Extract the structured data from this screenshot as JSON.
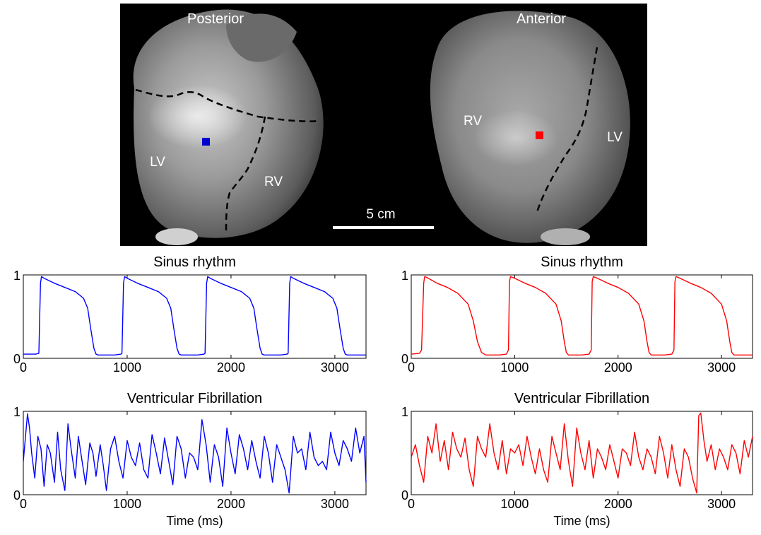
{
  "image_panel": {
    "labels": {
      "posterior": "Posterior",
      "anterior": "Anterior",
      "lv_posterior": "LV",
      "rv_posterior": "RV",
      "rv_anterior": "RV",
      "lv_anterior": "LV",
      "scale_bar": "5 cm"
    },
    "marker_colors": {
      "posterior": "#0000cc",
      "anterior": "#ff0000"
    }
  },
  "chart_data": [
    {
      "type": "line",
      "title": "Sinus rhythm",
      "xlabel": "",
      "ylabel": "",
      "xlim": [
        0,
        3300
      ],
      "ylim": [
        0,
        1
      ],
      "xticks": [
        0,
        1000,
        2000,
        3000
      ],
      "yticks": [
        0,
        1
      ],
      "color": "#0000ff",
      "series": [
        {
          "x": [
            0,
            120,
            150,
            165,
            175,
            200,
            300,
            400,
            500,
            580,
            620,
            650,
            680,
            700,
            720,
            800,
            880,
            940,
            950,
            965,
            975,
            1000,
            1100,
            1200,
            1300,
            1380,
            1420,
            1450,
            1480,
            1500,
            1520,
            1600,
            1680,
            1740,
            1750,
            1765,
            1775,
            1800,
            1900,
            2000,
            2100,
            2180,
            2220,
            2250,
            2280,
            2300,
            2320,
            2400,
            2480,
            2540,
            2550,
            2565,
            2575,
            2600,
            2700,
            2800,
            2900,
            2980,
            3020,
            3050,
            3080,
            3100,
            3120,
            3200,
            3300
          ],
          "y": [
            0.05,
            0.05,
            0.06,
            0.9,
            0.98,
            0.96,
            0.9,
            0.85,
            0.8,
            0.72,
            0.6,
            0.35,
            0.12,
            0.05,
            0.04,
            0.04,
            0.04,
            0.05,
            0.06,
            0.9,
            0.98,
            0.96,
            0.9,
            0.85,
            0.8,
            0.72,
            0.6,
            0.35,
            0.12,
            0.05,
            0.04,
            0.04,
            0.04,
            0.05,
            0.06,
            0.9,
            0.98,
            0.96,
            0.9,
            0.85,
            0.8,
            0.72,
            0.6,
            0.35,
            0.12,
            0.05,
            0.04,
            0.04,
            0.04,
            0.05,
            0.06,
            0.9,
            0.98,
            0.96,
            0.9,
            0.85,
            0.8,
            0.72,
            0.6,
            0.35,
            0.12,
            0.05,
            0.04,
            0.04,
            0.04
          ]
        }
      ]
    },
    {
      "type": "line",
      "title": "Sinus rhythm",
      "xlabel": "",
      "ylabel": "",
      "xlim": [
        0,
        3300
      ],
      "ylim": [
        0,
        1
      ],
      "xticks": [
        0,
        1000,
        2000,
        3000
      ],
      "yticks": [
        0,
        1
      ],
      "color": "#ff0000",
      "series": [
        {
          "x": [
            0,
            80,
            100,
            120,
            130,
            150,
            250,
            350,
            450,
            550,
            600,
            640,
            680,
            720,
            760,
            850,
            920,
            940,
            950,
            960,
            1000,
            1100,
            1200,
            1300,
            1400,
            1450,
            1480,
            1500,
            1520,
            1560,
            1650,
            1720,
            1740,
            1750,
            1760,
            1800,
            1900,
            2000,
            2100,
            2200,
            2250,
            2280,
            2300,
            2320,
            2360,
            2450,
            2520,
            2540,
            2550,
            2560,
            2600,
            2700,
            2800,
            2900,
            3000,
            3050,
            3080,
            3100,
            3120,
            3160,
            3300
          ],
          "y": [
            0.05,
            0.06,
            0.1,
            0.9,
            0.98,
            0.97,
            0.9,
            0.85,
            0.78,
            0.65,
            0.45,
            0.2,
            0.07,
            0.04,
            0.04,
            0.04,
            0.05,
            0.1,
            0.92,
            0.98,
            0.96,
            0.9,
            0.85,
            0.78,
            0.65,
            0.45,
            0.2,
            0.07,
            0.04,
            0.04,
            0.04,
            0.05,
            0.1,
            0.92,
            0.98,
            0.96,
            0.9,
            0.85,
            0.78,
            0.65,
            0.45,
            0.2,
            0.07,
            0.04,
            0.04,
            0.04,
            0.05,
            0.1,
            0.92,
            0.98,
            0.96,
            0.9,
            0.85,
            0.78,
            0.65,
            0.45,
            0.2,
            0.07,
            0.04,
            0.04,
            0.04
          ]
        }
      ]
    },
    {
      "type": "line",
      "title": "Ventricular Fibrillation",
      "xlabel": "Time (ms)",
      "ylabel": "",
      "xlim": [
        0,
        3300
      ],
      "ylim": [
        0,
        1
      ],
      "xticks": [
        0,
        1000,
        2000,
        3000
      ],
      "yticks": [
        0,
        1
      ],
      "color": "#0000ff",
      "series": [
        {
          "x": [
            0,
            40,
            60,
            80,
            110,
            140,
            170,
            200,
            230,
            260,
            300,
            330,
            360,
            400,
            430,
            460,
            500,
            530,
            560,
            600,
            640,
            670,
            700,
            740,
            770,
            800,
            840,
            880,
            920,
            960,
            1000,
            1040,
            1080,
            1120,
            1160,
            1200,
            1240,
            1280,
            1320,
            1360,
            1400,
            1440,
            1480,
            1520,
            1560,
            1600,
            1640,
            1680,
            1720,
            1760,
            1800,
            1840,
            1880,
            1920,
            1960,
            2000,
            2040,
            2080,
            2120,
            2160,
            2200,
            2240,
            2280,
            2320,
            2360,
            2400,
            2440,
            2480,
            2520,
            2560,
            2600,
            2640,
            2680,
            2720,
            2760,
            2800,
            2840,
            2880,
            2920,
            2960,
            3000,
            3040,
            3080,
            3120,
            3160,
            3200,
            3240,
            3280,
            3300
          ],
          "y": [
            0.4,
            0.97,
            0.8,
            0.5,
            0.2,
            0.7,
            0.55,
            0.1,
            0.6,
            0.5,
            0.15,
            0.75,
            0.3,
            0.05,
            0.85,
            0.55,
            0.2,
            0.7,
            0.45,
            0.12,
            0.62,
            0.5,
            0.22,
            0.6,
            0.35,
            0.05,
            0.55,
            0.7,
            0.4,
            0.2,
            0.65,
            0.45,
            0.35,
            0.62,
            0.3,
            0.2,
            0.72,
            0.5,
            0.25,
            0.68,
            0.4,
            0.12,
            0.7,
            0.55,
            0.2,
            0.5,
            0.45,
            0.3,
            0.9,
            0.6,
            0.15,
            0.6,
            0.45,
            0.1,
            0.8,
            0.5,
            0.25,
            0.72,
            0.55,
            0.3,
            0.65,
            0.4,
            0.2,
            0.7,
            0.5,
            0.15,
            0.6,
            0.45,
            0.3,
            0.02,
            0.7,
            0.5,
            0.55,
            0.3,
            0.75,
            0.45,
            0.35,
            0.4,
            0.3,
            0.75,
            0.5,
            0.35,
            0.65,
            0.55,
            0.4,
            0.8,
            0.5,
            0.7,
            0.15
          ]
        }
      ]
    },
    {
      "type": "line",
      "title": "Ventricular Fibrillation",
      "xlabel": "Time (ms)",
      "ylabel": "",
      "xlim": [
        0,
        3300
      ],
      "ylim": [
        0,
        1
      ],
      "xticks": [
        0,
        1000,
        2000,
        3000
      ],
      "yticks": [
        0,
        1
      ],
      "color": "#ff0000",
      "series": [
        {
          "x": [
            0,
            40,
            80,
            120,
            160,
            200,
            240,
            280,
            320,
            360,
            400,
            440,
            480,
            520,
            560,
            600,
            640,
            680,
            720,
            760,
            800,
            840,
            880,
            920,
            960,
            1000,
            1040,
            1080,
            1120,
            1160,
            1200,
            1240,
            1280,
            1320,
            1360,
            1400,
            1440,
            1480,
            1520,
            1560,
            1600,
            1640,
            1680,
            1720,
            1760,
            1800,
            1840,
            1880,
            1920,
            1960,
            2000,
            2040,
            2080,
            2120,
            2160,
            2200,
            2240,
            2280,
            2320,
            2360,
            2400,
            2440,
            2480,
            2520,
            2560,
            2600,
            2640,
            2680,
            2720,
            2760,
            2780,
            2800,
            2830,
            2860,
            2900,
            2940,
            2980,
            3020,
            3060,
            3100,
            3140,
            3180,
            3220,
            3260,
            3300
          ],
          "y": [
            0.45,
            0.6,
            0.35,
            0.15,
            0.7,
            0.5,
            0.85,
            0.4,
            0.65,
            0.3,
            0.75,
            0.55,
            0.45,
            0.68,
            0.3,
            0.1,
            0.7,
            0.55,
            0.45,
            0.85,
            0.5,
            0.3,
            0.65,
            0.25,
            0.55,
            0.5,
            0.6,
            0.35,
            0.7,
            0.45,
            0.25,
            0.55,
            0.3,
            0.15,
            0.7,
            0.5,
            0.3,
            0.85,
            0.4,
            0.1,
            0.8,
            0.5,
            0.3,
            0.65,
            0.2,
            0.55,
            0.45,
            0.3,
            0.6,
            0.4,
            0.2,
            0.55,
            0.5,
            0.35,
            0.75,
            0.45,
            0.3,
            0.55,
            0.45,
            0.25,
            0.7,
            0.5,
            0.2,
            0.6,
            0.3,
            0.1,
            0.55,
            0.45,
            0.2,
            0.02,
            0.95,
            0.98,
            0.65,
            0.4,
            0.6,
            0.3,
            0.55,
            0.45,
            0.3,
            0.6,
            0.5,
            0.25,
            0.65,
            0.45,
            0.7
          ]
        }
      ]
    }
  ]
}
